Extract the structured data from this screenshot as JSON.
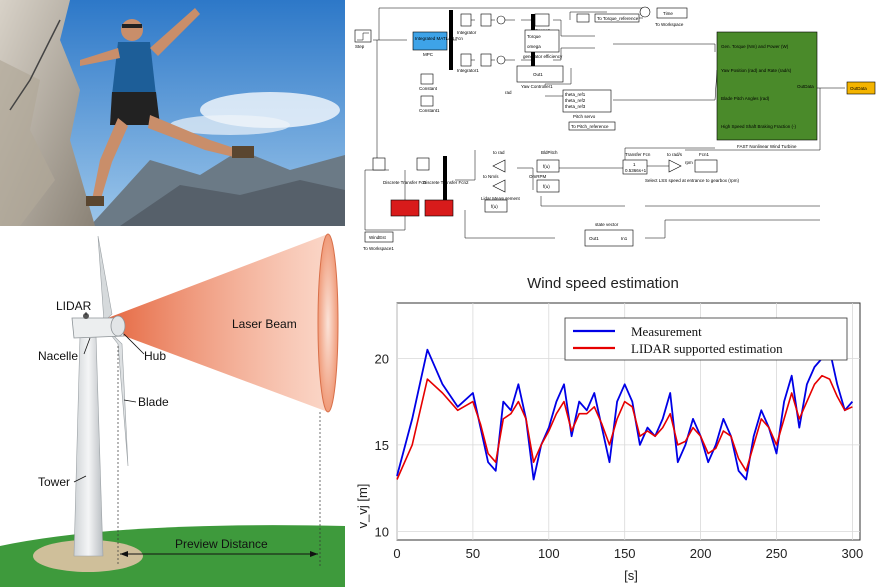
{
  "turbine": {
    "labels": {
      "lidar": "LIDAR",
      "nacelle": "Nacelle",
      "hub": "Hub",
      "blade": "Blade",
      "tower": "Tower",
      "laser_beam": "Laser Beam",
      "preview_distance": "Preview Distance"
    }
  },
  "simulink": {
    "blocks": {
      "step": "Step",
      "mpc": "Integrated MATLAB Fcn",
      "mpc_label": "MPC",
      "constant": "Constant",
      "constant1": "Constant1",
      "integrator": "Integrator",
      "integrator1": "Integrator1",
      "scope": "Scope1",
      "torque": "Torque",
      "omega": "omega",
      "gen_eff": "generator efficiency",
      "time": "Time",
      "to_workspace": "To Workspace",
      "torque_ref": "To Torque_reference",
      "out1": "Out1",
      "yaw": "Yaw Controller1",
      "rad": "rad",
      "theta1": "theta_ref1",
      "theta2": "theta_ref2",
      "theta3": "theta_ref3",
      "pitch_servo": "Pitch servo",
      "pitch_ref": "To Pitch_reference",
      "fast": "FAST Nonlinear Wind Turbine",
      "fast_in1": "Gen. Torque (Nm) and Power (W)",
      "fast_in2": "Yaw Position (rad) and Rate (rad/s)",
      "fast_in3": "Blade Pitch Angles (rad)",
      "fast_in4": "High Speed Shaft Braking Fraction (-)",
      "outdata": "OutData",
      "outdata_ws": "OutData",
      "tf": "Transfer Fcn",
      "tf_num": "1",
      "tf_den": "0.5366s+1",
      "to_radps": "to rad/s",
      "rpm": "rpm",
      "fcn1": "Fcn1",
      "select_lss": "Select LSS speed at entrance to gearbox (rpm)",
      "bldpitch": "BldPitch",
      "fu": "f(u)",
      "to_rad": "to rad",
      "to_nms": "to Nm/s",
      "lidar_meas": "Lidar Measurement",
      "omrpm": "OmRPM",
      "dtf": "Discrete Transfer Fcn",
      "dtf2": "Discrete Transfer Fcn2",
      "state_vector": "state vector",
      "in1": "In1",
      "windest": "WindEst",
      "windest_ws": "To Workspace1"
    }
  },
  "chart_data": {
    "type": "line",
    "title": "Wind speed estimation",
    "xlabel": "[s]",
    "ylabel": "v_vj [m]",
    "xlim": [
      0,
      305
    ],
    "ylim": [
      9.5,
      23.2
    ],
    "xticks": [
      0,
      50,
      100,
      150,
      200,
      250,
      300
    ],
    "yticks": [
      10,
      15,
      20
    ],
    "grid": true,
    "legend_position": "top-right",
    "series": [
      {
        "name": "Measurement",
        "color": "#0000e6",
        "x": [
          0,
          10,
          20,
          30,
          40,
          50,
          55,
          60,
          65,
          70,
          75,
          80,
          85,
          90,
          95,
          100,
          105,
          110,
          115,
          120,
          125,
          130,
          135,
          140,
          145,
          150,
          155,
          160,
          165,
          170,
          175,
          180,
          185,
          190,
          195,
          200,
          205,
          210,
          215,
          220,
          225,
          230,
          235,
          240,
          245,
          250,
          255,
          260,
          265,
          270,
          275,
          280,
          285,
          290,
          295,
          300
        ],
        "values": [
          13.2,
          16.5,
          20.5,
          18.5,
          17.2,
          18.0,
          16.0,
          14.0,
          13.5,
          17.5,
          17.0,
          18.5,
          16.5,
          13.0,
          15.0,
          16.0,
          17.5,
          18.5,
          15.5,
          17.5,
          17.0,
          18.0,
          16.0,
          14.0,
          17.5,
          18.5,
          17.5,
          15.0,
          16.0,
          15.5,
          16.5,
          18.0,
          14.0,
          15.0,
          16.5,
          15.5,
          14.0,
          15.0,
          16.5,
          15.5,
          13.5,
          13.0,
          15.5,
          17.0,
          16.0,
          14.5,
          17.5,
          19.0,
          16.0,
          18.5,
          19.5,
          20.0,
          20.5,
          18.5,
          17.0,
          17.5
        ]
      },
      {
        "name": "LIDAR supported estimation",
        "color": "#e60000",
        "x": [
          0,
          10,
          20,
          30,
          40,
          50,
          55,
          60,
          65,
          70,
          75,
          80,
          85,
          90,
          95,
          100,
          105,
          110,
          115,
          120,
          125,
          130,
          135,
          140,
          145,
          150,
          155,
          160,
          165,
          170,
          175,
          180,
          185,
          190,
          195,
          200,
          205,
          210,
          215,
          220,
          225,
          230,
          235,
          240,
          245,
          250,
          255,
          260,
          265,
          270,
          275,
          280,
          285,
          290,
          295,
          300
        ],
        "values": [
          13.0,
          15.0,
          18.8,
          18.0,
          17.0,
          17.5,
          16.2,
          14.5,
          14.0,
          16.5,
          16.8,
          17.5,
          16.5,
          14.0,
          15.0,
          15.8,
          16.8,
          17.5,
          15.8,
          16.8,
          16.8,
          17.2,
          16.2,
          15.0,
          16.5,
          17.5,
          17.2,
          15.5,
          15.8,
          15.5,
          16.0,
          16.8,
          15.0,
          15.2,
          16.0,
          15.5,
          14.5,
          14.8,
          15.8,
          15.5,
          14.2,
          13.5,
          15.0,
          16.5,
          16.0,
          15.0,
          16.5,
          18.0,
          16.5,
          17.5,
          18.5,
          19.0,
          18.8,
          17.8,
          17.0,
          17.2
        ]
      }
    ]
  }
}
